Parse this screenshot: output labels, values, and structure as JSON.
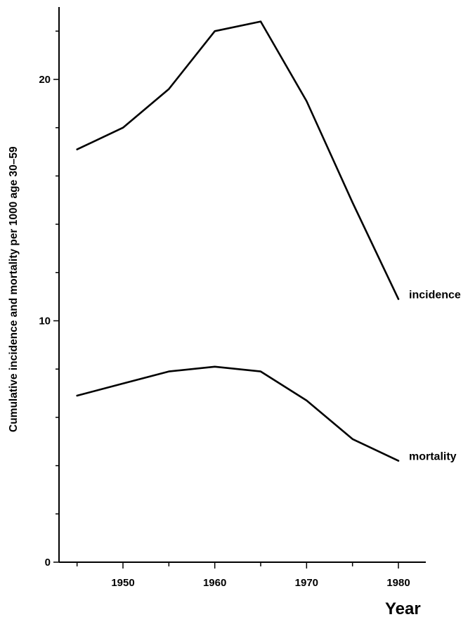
{
  "chart_data": {
    "type": "line",
    "xlabel": "Year",
    "ylabel": "Cumulative incidence and mortality per 1000 age 30–59",
    "xlim": [
      1942,
      1983
    ],
    "ylim": [
      0,
      23
    ],
    "x_ticks": [
      1950,
      1960,
      1970,
      1980
    ],
    "y_ticks": [
      0,
      10,
      20
    ],
    "y_minor_ticks": [
      2,
      4,
      6,
      8,
      12,
      14,
      16,
      18,
      22
    ],
    "x_minor_ticks": [
      1945,
      1955,
      1965,
      1975
    ],
    "grid": false,
    "legend": "none",
    "series": [
      {
        "name": "incidence",
        "x": [
          1945,
          1950,
          1955,
          1960,
          1965,
          1970,
          1975,
          1980
        ],
        "values": [
          17.1,
          18.0,
          19.6,
          22.0,
          22.4,
          19.1,
          14.9,
          10.9
        ]
      },
      {
        "name": "mortality",
        "x": [
          1945,
          1950,
          1955,
          1960,
          1965,
          1970,
          1975,
          1980
        ],
        "values": [
          6.9,
          7.4,
          7.9,
          8.1,
          7.9,
          6.7,
          5.1,
          4.2
        ]
      }
    ]
  }
}
